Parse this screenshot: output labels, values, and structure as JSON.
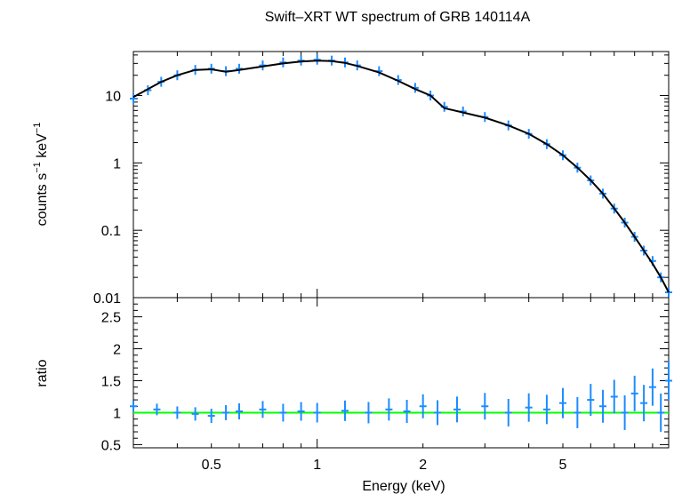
{
  "chart_data": [
    {
      "type": "scatter",
      "title": "Swift–XRT WT spectrum of GRB 140114A",
      "xlabel": "",
      "ylabel_main": "counts s",
      "ylabel_sup1": "−1",
      "ylabel_mid": " keV",
      "ylabel_sup2": "−1",
      "xscale": "log",
      "yscale": "log",
      "xlim": [
        0.3,
        10
      ],
      "ylim": [
        0.01,
        45
      ],
      "yticks": [
        0.01,
        0.1,
        1,
        10
      ],
      "ytick_labels": [
        "0.01",
        "0.1",
        "1",
        "10"
      ],
      "series": [
        {
          "kind": "data",
          "color": "#1e8cff",
          "x": [
            0.3,
            0.33,
            0.36,
            0.4,
            0.45,
            0.5,
            0.55,
            0.6,
            0.7,
            0.8,
            0.9,
            1.0,
            1.1,
            1.2,
            1.3,
            1.5,
            1.7,
            1.9,
            2.1,
            2.3,
            2.6,
            3.0,
            3.5,
            4.0,
            4.5,
            5.0,
            5.5,
            6.0,
            6.5,
            7.0,
            7.5,
            8.0,
            8.5,
            9.0,
            9.5,
            10.0
          ],
          "y": [
            9,
            12,
            16,
            20,
            24,
            25,
            23,
            25,
            28,
            31,
            33,
            34,
            33,
            31,
            28,
            23,
            17,
            13,
            10,
            6.8,
            5.8,
            4.8,
            3.6,
            2.7,
            1.9,
            1.3,
            0.85,
            0.55,
            0.35,
            0.21,
            0.13,
            0.08,
            0.05,
            0.035,
            0.02,
            0.012
          ]
        },
        {
          "kind": "model",
          "color": "#000000",
          "x": [
            0.3,
            0.33,
            0.36,
            0.4,
            0.45,
            0.5,
            0.55,
            0.6,
            0.7,
            0.8,
            0.9,
            1.0,
            1.1,
            1.2,
            1.3,
            1.5,
            1.7,
            1.9,
            2.1,
            2.3,
            2.6,
            3.0,
            3.5,
            4.0,
            4.5,
            5.0,
            5.5,
            6.0,
            6.5,
            7.0,
            7.5,
            8.0,
            8.5,
            9.0,
            9.5,
            10.0
          ],
          "y": [
            9.5,
            12.5,
            16,
            20,
            24,
            24.5,
            22.5,
            24,
            27,
            30,
            32,
            33,
            32.5,
            30.5,
            27.5,
            22,
            16.5,
            12.5,
            10,
            6.5,
            5.6,
            4.7,
            3.6,
            2.7,
            1.9,
            1.3,
            0.85,
            0.55,
            0.35,
            0.21,
            0.13,
            0.08,
            0.05,
            0.032,
            0.02,
            0.012
          ]
        }
      ]
    },
    {
      "type": "scatter",
      "title": "",
      "xlabel": "Energy (keV)",
      "ylabel": "ratio",
      "xscale": "log",
      "yscale": "linear",
      "xlim": [
        0.3,
        10
      ],
      "ylim": [
        0.45,
        2.8
      ],
      "xticks": [
        0.5,
        1,
        2,
        5
      ],
      "xtick_labels": [
        "0.5",
        "1",
        "2",
        "5"
      ],
      "yticks": [
        0.5,
        1,
        1.5,
        2,
        2.5
      ],
      "ytick_labels": [
        "0.5",
        "1",
        "1.5",
        "2",
        "2.5"
      ],
      "reference_line": {
        "y": 1,
        "color": "#00ff00"
      },
      "series": [
        {
          "kind": "ratio",
          "color": "#1e8cff",
          "x": [
            0.3,
            0.35,
            0.4,
            0.45,
            0.5,
            0.55,
            0.6,
            0.7,
            0.8,
            0.9,
            1.0,
            1.2,
            1.4,
            1.6,
            1.8,
            2.0,
            2.2,
            2.5,
            3.0,
            3.5,
            4.0,
            4.5,
            5.0,
            5.5,
            6.0,
            6.5,
            7.0,
            7.5,
            8.0,
            8.5,
            9.0,
            9.5,
            10.0
          ],
          "y": [
            1.1,
            1.05,
            1.0,
            0.98,
            0.95,
            1.0,
            1.02,
            1.05,
            1.0,
            1.02,
            1.0,
            1.03,
            1.0,
            1.05,
            1.02,
            1.1,
            1.0,
            1.05,
            1.1,
            1.0,
            1.08,
            1.05,
            1.15,
            1.0,
            1.2,
            1.1,
            1.25,
            1.0,
            1.3,
            1.15,
            1.4,
            1.0,
            1.5
          ]
        }
      ]
    }
  ]
}
